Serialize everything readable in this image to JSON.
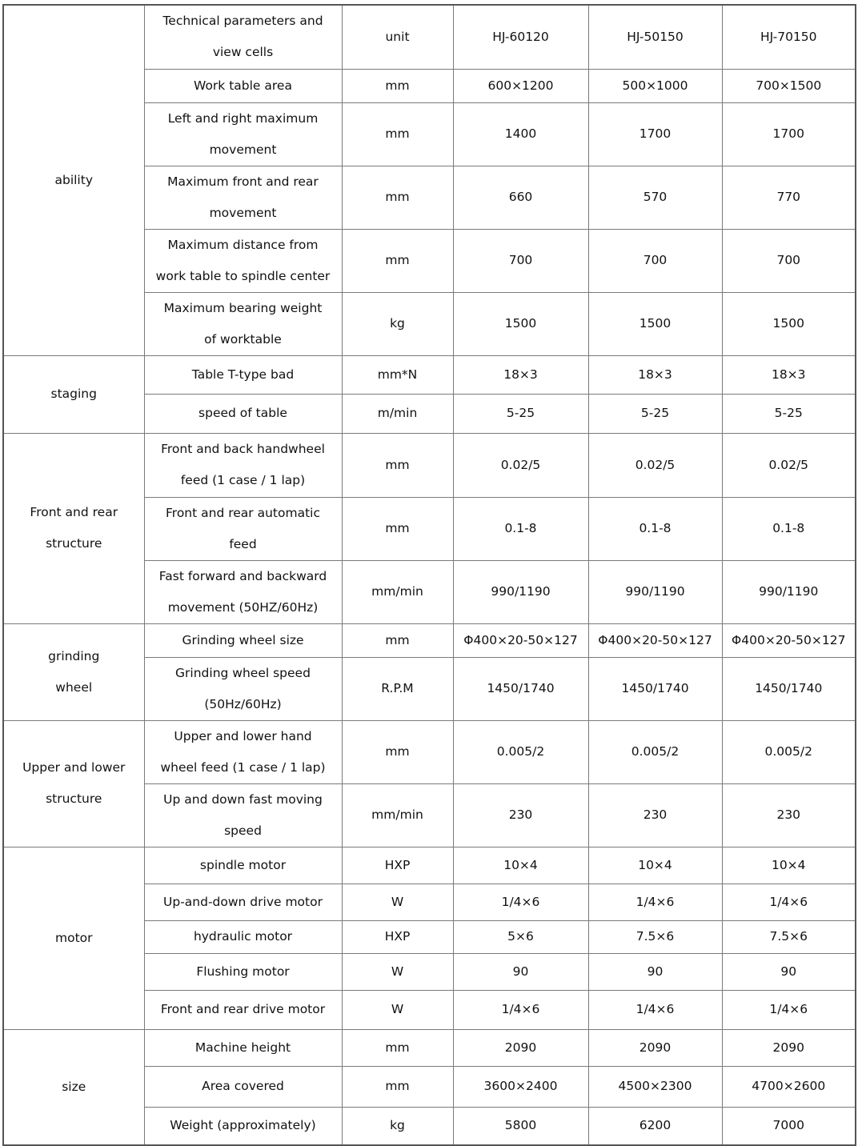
{
  "header": {
    "label": "Technical parameters and\nview cells",
    "unit": "unit",
    "models": [
      "HJ-60120",
      "HJ-50150",
      "HJ-70150"
    ]
  },
  "groups": [
    {
      "name": "ability",
      "rows": [
        {
          "param": "Work table area",
          "unit": "mm",
          "values": [
            "600×1200",
            "500×1000",
            "700×1500"
          ]
        },
        {
          "param": "Left and right maximum\nmovement",
          "unit": "mm",
          "values": [
            "1400",
            "1700",
            "1700"
          ]
        },
        {
          "param": "Maximum front and rear\nmovement",
          "unit": "mm",
          "values": [
            "660",
            "570",
            "770"
          ]
        },
        {
          "param": "Maximum distance from\nwork table to spindle center",
          "unit": "mm",
          "values": [
            "700",
            "700",
            "700"
          ]
        },
        {
          "param": "Maximum bearing weight\nof worktable",
          "unit": "kg",
          "values": [
            "1500",
            "1500",
            "1500"
          ]
        }
      ]
    },
    {
      "name": "staging",
      "rows": [
        {
          "param": "Table T-type bad",
          "unit": "mm*N",
          "values": [
            "18×3",
            "18×3",
            "18×3"
          ]
        },
        {
          "param": "speed of table",
          "unit": "m/min",
          "values": [
            "5-25",
            "5-25",
            "5-25"
          ]
        }
      ]
    },
    {
      "name": "Front and rear\nstructure",
      "rows": [
        {
          "param": "Front and back handwheel\nfeed (1 case / 1 lap)",
          "unit": "mm",
          "values": [
            "0.02/5",
            "0.02/5",
            "0.02/5"
          ]
        },
        {
          "param": "Front and rear automatic\nfeed",
          "unit": "mm",
          "values": [
            "0.1-8",
            "0.1-8",
            "0.1-8"
          ]
        },
        {
          "param": "Fast forward and backward\nmovement (50HZ/60Hz)",
          "unit": "mm/min",
          "values": [
            "990/1190",
            "990/1190",
            "990/1190"
          ]
        }
      ]
    },
    {
      "name": "  grinding\nwheel",
      "rows": [
        {
          "param": "Grinding wheel size",
          "unit": "mm",
          "values": [
            "Φ400×20-50×127",
            "Φ400×20-50×127",
            "Φ400×20-50×127"
          ]
        },
        {
          "param": "Grinding wheel speed\n(50Hz/60Hz)",
          "unit": "R.P.M",
          "values": [
            "1450/1740",
            "1450/1740",
            "1450/1740"
          ]
        }
      ]
    },
    {
      "name": "Upper and lower\nstructure",
      "rows": [
        {
          "param": "Upper and lower hand\nwheel feed (1 case / 1 lap)",
          "unit": "mm",
          "values": [
            "0.005/2",
            "0.005/2",
            "0.005/2"
          ]
        },
        {
          "param": "Up and down fast moving\nspeed",
          "unit": "mm/min",
          "values": [
            "230",
            "230",
            "230"
          ]
        }
      ]
    },
    {
      "name": "motor",
      "rows": [
        {
          "param": "spindle motor",
          "unit": "HXP",
          "values": [
            "10×4",
            "10×4",
            "10×4"
          ]
        },
        {
          "param": "Up-and-down drive motor",
          "unit": "W",
          "values": [
            "1/4×6",
            "1/4×6",
            "1/4×6"
          ]
        },
        {
          "param": "hydraulic motor",
          "unit": "HXP",
          "values": [
            "5×6",
            "7.5×6",
            "7.5×6"
          ]
        },
        {
          "param": "Flushing motor",
          "unit": "W",
          "values": [
            "90",
            "90",
            "90"
          ]
        },
        {
          "param": "Front and rear drive motor",
          "unit": "W",
          "values": [
            "1/4×6",
            "1/4×6",
            "1/4×6"
          ]
        }
      ]
    },
    {
      "name": "size",
      "rows": [
        {
          "param": "Machine height",
          "unit": "mm",
          "values": [
            "2090",
            "2090",
            "2090"
          ]
        },
        {
          "param": "Area covered",
          "unit": "mm",
          "values": [
            "3600×2400",
            "4500×2300",
            "4700×2600"
          ]
        },
        {
          "param": "Weight (approximately)",
          "unit": "kg",
          "values": [
            "5800",
            "6200",
            "7000"
          ]
        }
      ]
    }
  ]
}
